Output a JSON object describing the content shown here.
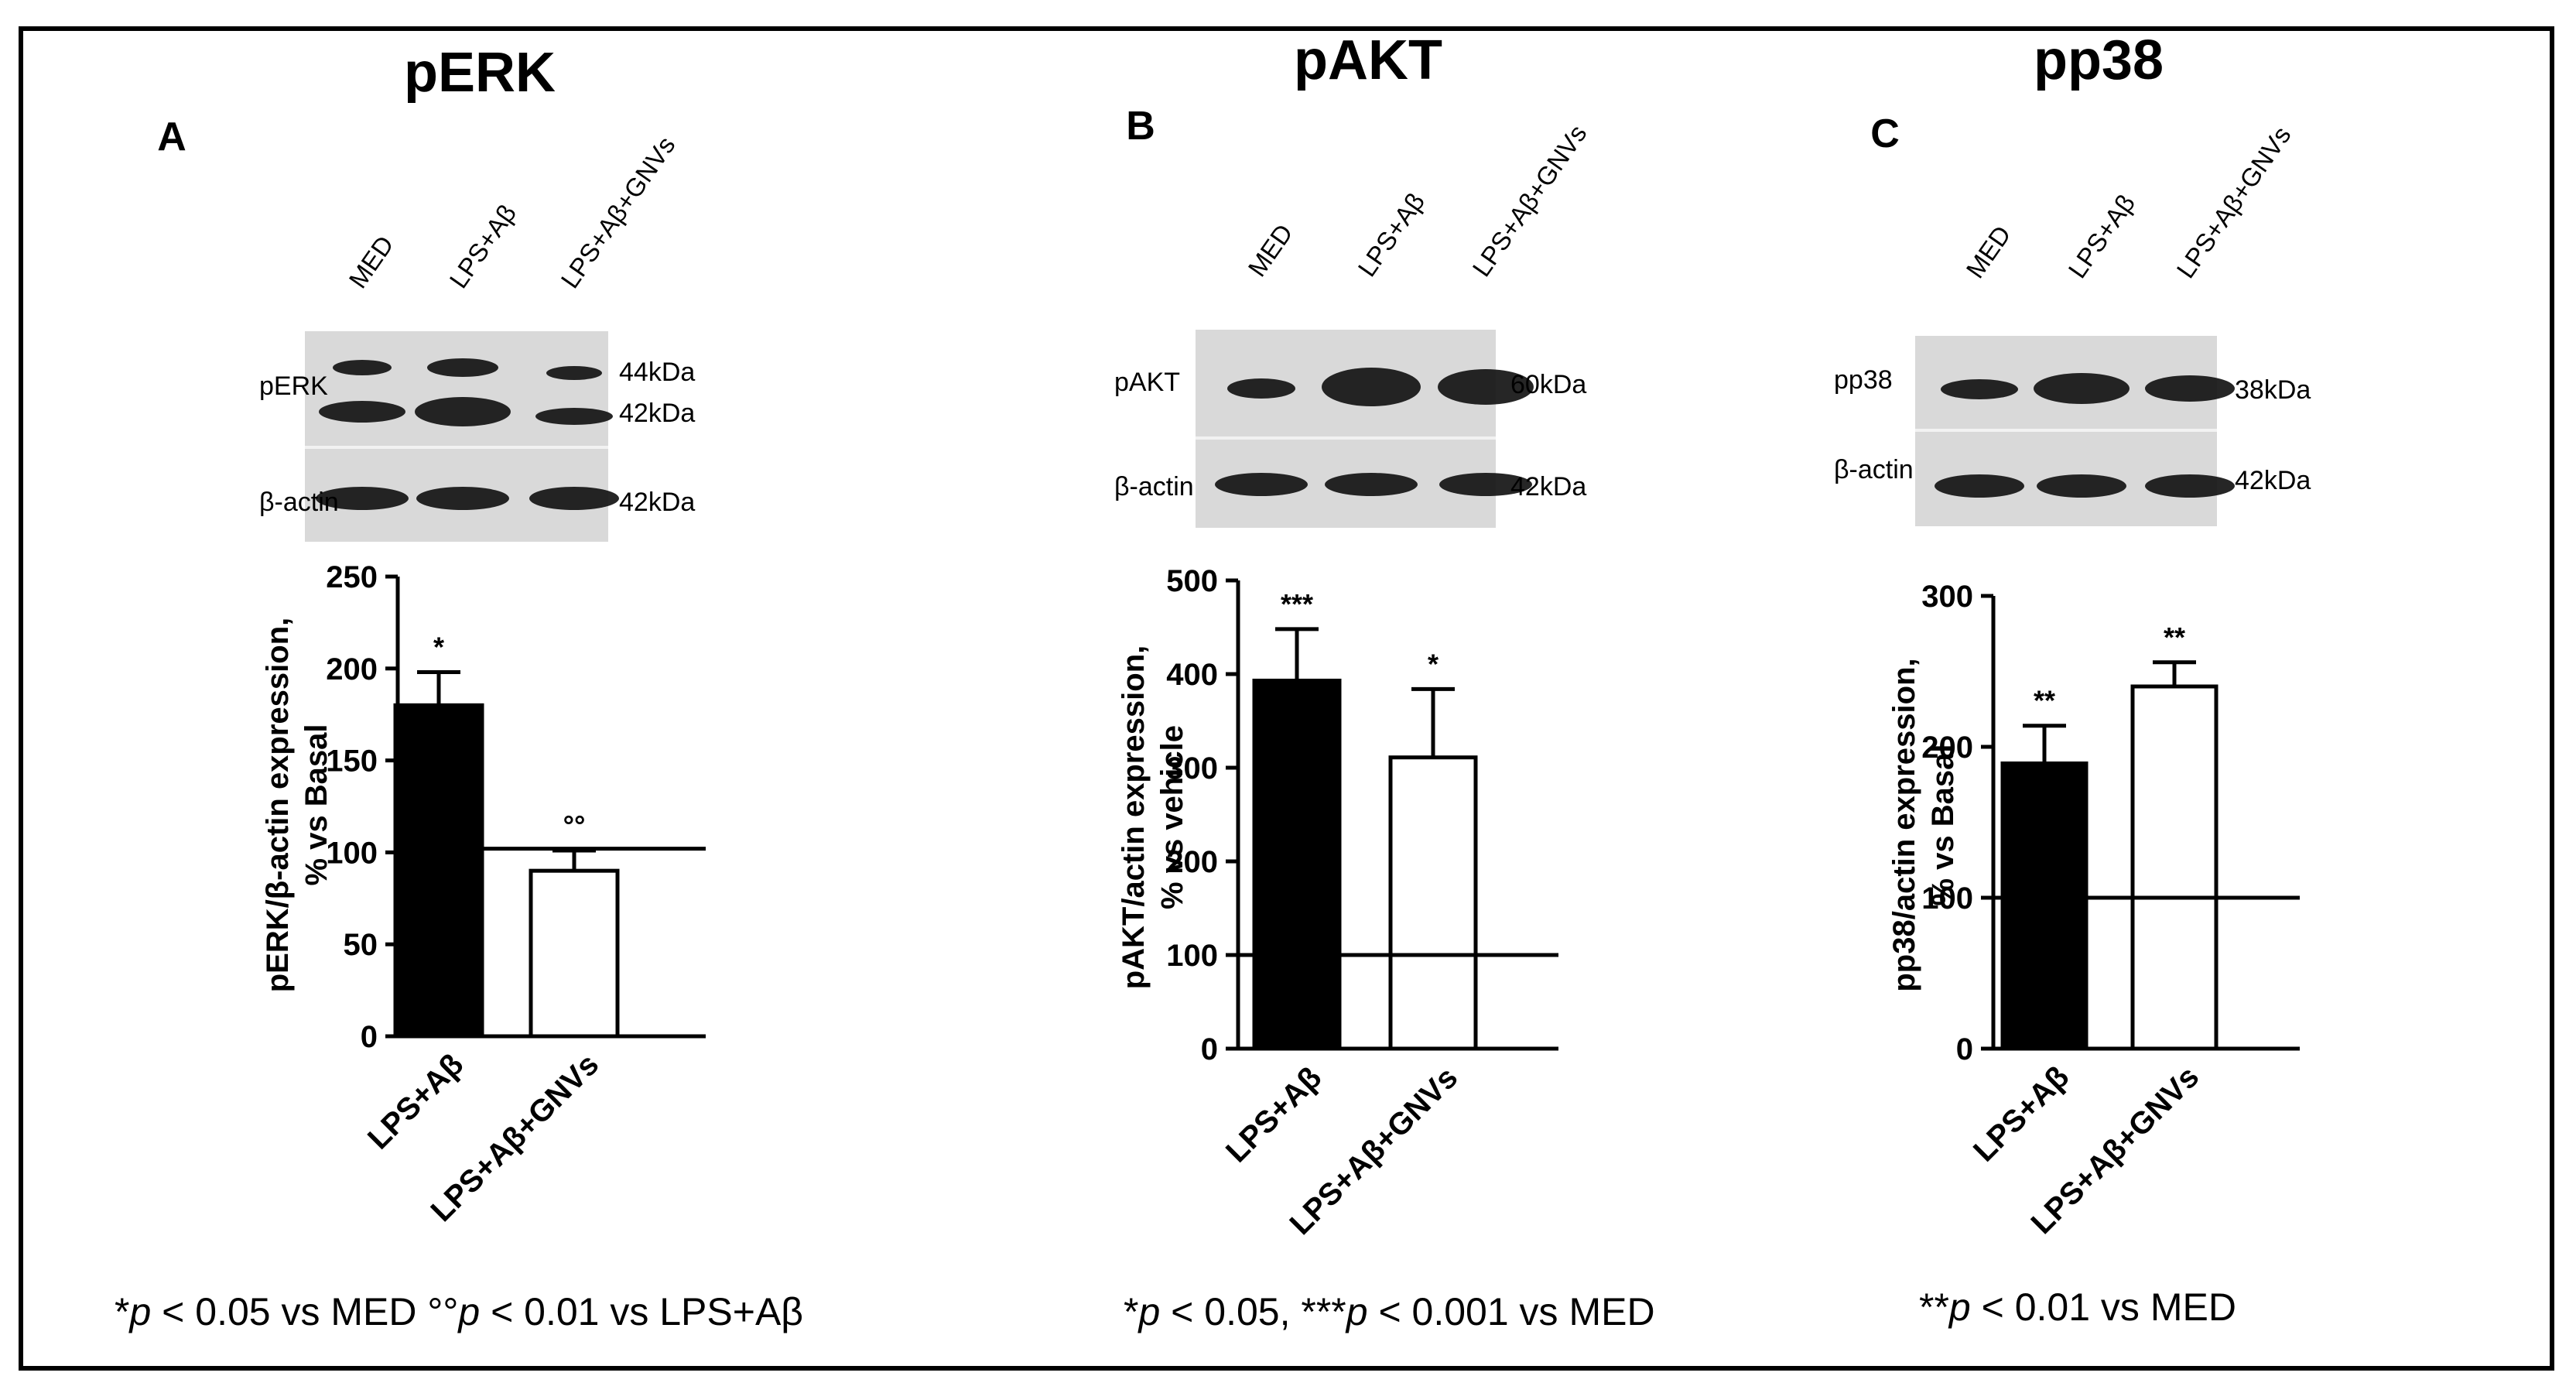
{
  "figure": {
    "panels": [
      {
        "id": "A",
        "title": "pERK",
        "letter": "A",
        "lanes": [
          "MED",
          "LPS+Aβ",
          "LPS+Aβ+GNVs"
        ],
        "blot_rows": [
          {
            "label": "pERK",
            "kda": [
              "44kDa",
              "42kDa"
            ]
          },
          {
            "label": "β-actin",
            "kda": [
              "42kDa"
            ]
          }
        ],
        "footnote_parts": [
          {
            "text": "*",
            "italic": false
          },
          {
            "text": "p",
            "italic": true
          },
          {
            "text": " < 0.05 vs MED °°",
            "italic": false
          },
          {
            "text": "p",
            "italic": true
          },
          {
            "text": " < 0.01 vs LPS+Aβ",
            "italic": false
          }
        ]
      },
      {
        "id": "B",
        "title": "pAKT",
        "letter": "B",
        "lanes": [
          "MED",
          "LPS+Aβ",
          "LPS+Aβ+GNVs"
        ],
        "blot_rows": [
          {
            "label": "pAKT",
            "kda": [
              "60kDa"
            ]
          },
          {
            "label": "β-actin",
            "kda": [
              "42kDa"
            ]
          }
        ],
        "footnote_parts": [
          {
            "text": "*",
            "italic": false
          },
          {
            "text": "p",
            "italic": true
          },
          {
            "text": " < 0.05, ***",
            "italic": false
          },
          {
            "text": "p",
            "italic": true
          },
          {
            "text": " < 0.001 vs MED",
            "italic": false
          }
        ]
      },
      {
        "id": "C",
        "title": "pp38",
        "letter": "C",
        "lanes": [
          "MED",
          "LPS+Aβ",
          "LPS+Aβ+GNVs"
        ],
        "blot_rows": [
          {
            "label": "pp38",
            "kda": [
              "38kDa"
            ]
          },
          {
            "label": "β-actin",
            "kda": [
              "42kDa"
            ]
          }
        ],
        "footnote_parts": [
          {
            "text": "**",
            "italic": false
          },
          {
            "text": "p",
            "italic": true
          },
          {
            "text": " < 0.01 vs MED",
            "italic": false
          }
        ]
      }
    ]
  },
  "chart_data": [
    {
      "type": "bar",
      "panel": "A",
      "categories": [
        "LPS+Aβ",
        "LPS+Aβ+GNVs"
      ],
      "values": [
        180,
        90
      ],
      "errors": [
        18,
        11
      ],
      "bar_colors": [
        "#000000",
        "#ffffff"
      ],
      "significance": [
        "*",
        "°°"
      ],
      "ylabel": [
        "pERK/β-actin expression,",
        "% vs Basal"
      ],
      "ylim": [
        0,
        250
      ],
      "yticks": [
        0,
        50,
        100,
        150,
        200,
        250
      ],
      "baseline": 102
    },
    {
      "type": "bar",
      "panel": "B",
      "categories": [
        "LPS+Aβ",
        "LPS+Aβ+GNVs"
      ],
      "values": [
        393,
        311
      ],
      "errors": [
        55,
        73
      ],
      "bar_colors": [
        "#000000",
        "#ffffff"
      ],
      "significance": [
        "***",
        "*"
      ],
      "ylabel": [
        "pAKT/actin expression,",
        "% vs vehicle"
      ],
      "ylim": [
        0,
        500
      ],
      "yticks": [
        0,
        100,
        200,
        300,
        400,
        500
      ],
      "baseline": 100
    },
    {
      "type": "bar",
      "panel": "C",
      "categories": [
        "LPS+Aβ",
        "LPS+Aβ+GNVs"
      ],
      "values": [
        189,
        240
      ],
      "errors": [
        25,
        16
      ],
      "bar_colors": [
        "#000000",
        "#ffffff"
      ],
      "significance": [
        "**",
        "**"
      ],
      "ylabel": [
        "pp38/actin expression,",
        "% vs Basal"
      ],
      "ylim": [
        0,
        300
      ],
      "yticks": [
        0,
        100,
        200,
        300
      ],
      "baseline": 100
    }
  ]
}
